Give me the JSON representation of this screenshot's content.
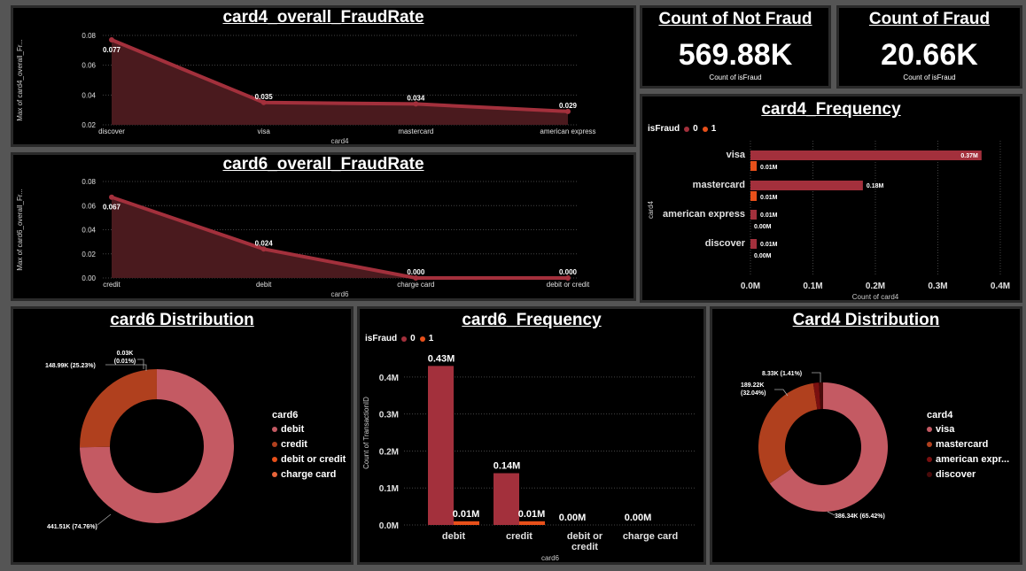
{
  "colors": {
    "dark_red": "#A3303C",
    "orange": "#E8501A",
    "pink": "#C45A63",
    "rust": "#B0401E",
    "area": "#4A1A1E",
    "grid": "#444444"
  },
  "kpi": {
    "not_fraud": {
      "title": "Count of Not Fraud",
      "value": "569.88K",
      "sub": "Count of isFraud"
    },
    "fraud": {
      "title": "Count of Fraud",
      "value": "20.66K",
      "sub": "Count of isFraud"
    }
  },
  "chart_data": [
    {
      "id": "card4_rate",
      "type": "area",
      "title": "card4_overall_FraudRate",
      "xlabel": "card4",
      "ylabel": "Max of card4_overall_Fr...",
      "categories": [
        "discover",
        "visa",
        "mastercard",
        "american express"
      ],
      "values": [
        0.077,
        0.035,
        0.034,
        0.029
      ],
      "labels": [
        "0.077",
        "0.035",
        "0.034",
        "0.029"
      ],
      "yticks": [
        "0.08",
        "0.06",
        "0.04",
        "0.02"
      ],
      "ylim": [
        0.02,
        0.08
      ]
    },
    {
      "id": "card6_rate",
      "type": "area",
      "title": "card6_overall_FraudRate",
      "xlabel": "card6",
      "ylabel": "Max of card6_overall_Fr...",
      "categories": [
        "credit",
        "debit",
        "charge card",
        "debit or credit"
      ],
      "values": [
        0.067,
        0.024,
        0.0,
        0.0
      ],
      "labels": [
        "0.067",
        "0.024",
        "0.000",
        "0.000"
      ],
      "yticks": [
        "0.08",
        "0.06",
        "0.04",
        "0.02",
        "0.00"
      ],
      "ylim": [
        0,
        0.08
      ]
    },
    {
      "id": "card4_freq",
      "type": "bar",
      "orientation": "horizontal",
      "title": "card4_Frequency",
      "legend_title": "isFraud",
      "xlabel": "Count of card4",
      "ylabel": "card4",
      "categories": [
        "visa",
        "mastercard",
        "american express",
        "discover"
      ],
      "series": [
        {
          "name": "0",
          "values": [
            0.37,
            0.18,
            0.01,
            0.01
          ],
          "labels": [
            "0.37M",
            "0.18M",
            "0.01M",
            "0.01M"
          ]
        },
        {
          "name": "1",
          "values": [
            0.01,
            0.01,
            0.0,
            0.0
          ],
          "labels": [
            "0.01M",
            "0.01M",
            "0.00M",
            "0.00M"
          ]
        }
      ],
      "xticks": [
        "0.0M",
        "0.1M",
        "0.2M",
        "0.3M",
        "0.4M"
      ],
      "xlim": [
        0,
        0.4
      ]
    },
    {
      "id": "card6_dist",
      "type": "pie",
      "title": "card6 Distribution",
      "legend_title": "card6",
      "slices": [
        {
          "label": "debit",
          "value": 441.51,
          "text": "441.51K (74.76%)"
        },
        {
          "label": "credit",
          "value": 148.99,
          "text": "148.99K (25.23%)"
        },
        {
          "label": "debit or credit",
          "value": 0.03,
          "text": "0.03K (0.01%)"
        },
        {
          "label": "charge card",
          "value": 0.02,
          "text": ""
        }
      ]
    },
    {
      "id": "card6_freq",
      "type": "bar",
      "orientation": "vertical",
      "title": "card6_Frequency",
      "legend_title": "isFraud",
      "xlabel": "card6",
      "ylabel": "Count of TransactionID",
      "categories": [
        "debit",
        "credit",
        "debit or credit",
        "charge card"
      ],
      "series": [
        {
          "name": "0",
          "values": [
            0.43,
            0.14,
            0.0,
            0.0
          ],
          "labels": [
            "0.43M",
            "0.14M",
            "0.00M",
            "0.00M"
          ]
        },
        {
          "name": "1",
          "values": [
            0.01,
            0.01,
            0.0,
            0.0
          ],
          "labels": [
            "0.01M",
            "0.01M",
            "",
            ""
          ]
        }
      ],
      "yticks": [
        "0.4M",
        "0.3M",
        "0.2M",
        "0.1M",
        "0.0M"
      ],
      "ylim": [
        0,
        0.45
      ]
    },
    {
      "id": "card4_dist",
      "type": "pie",
      "title": "Card4 Distribution",
      "legend_title": "card4",
      "slices": [
        {
          "label": "visa",
          "value": 386.34,
          "text": "386.34K (65.42%)"
        },
        {
          "label": "mastercard",
          "value": 189.22,
          "text": "189.22K (32.04%)"
        },
        {
          "label": "american expr...",
          "value": 8.33,
          "text": "8.33K (1.41%)"
        },
        {
          "label": "discover",
          "value": 6.2,
          "text": ""
        }
      ]
    }
  ]
}
